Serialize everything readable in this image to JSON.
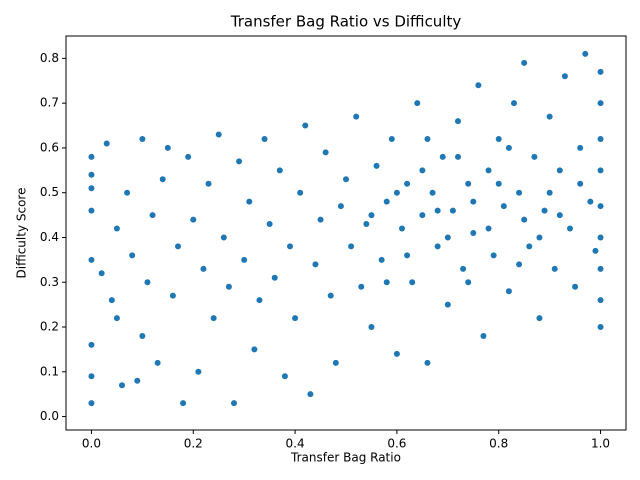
{
  "chart_data": {
    "type": "scatter",
    "title": "Transfer Bag Ratio vs Difficulty",
    "x_label": "Transfer Bag Ratio",
    "y_label": "Difficulty Score",
    "color": "#1f77b4",
    "xlim": [
      -0.05,
      1.05
    ],
    "ylim": [
      -0.03,
      0.85
    ],
    "xticks": [
      {
        "value": 0,
        "label": "0.0"
      },
      0.2,
      0.4,
      0.6,
      0.8,
      {
        "value": 1,
        "label": "1.0"
      }
    ],
    "yticks": [
      {
        "value": 0,
        "label": "0.0"
      },
      0.1,
      0.2,
      0.3,
      0.4,
      0.5,
      0.6,
      0.7,
      0.8
    ],
    "x": [
      0,
      0,
      0,
      0,
      0,
      0,
      0,
      0,
      0.02,
      0.03,
      0.04,
      0.05,
      0.05,
      0.06,
      0.07,
      0.08,
      0.09,
      0.1,
      0.1,
      0.11,
      0.12,
      0.13,
      0.14,
      0.15,
      0.16,
      0.17,
      0.18,
      0.19,
      0.2,
      0.21,
      0.22,
      0.23,
      0.24,
      0.25,
      0.26,
      0.27,
      0.28,
      0.29,
      0.3,
      0.31,
      0.32,
      0.33,
      0.34,
      0.35,
      0.36,
      0.37,
      0.38,
      0.39,
      0.4,
      0.41,
      0.42,
      0.43,
      0.44,
      0.45,
      0.46,
      0.47,
      0.48,
      0.49,
      0.5,
      0.51,
      0.52,
      0.53,
      0.54,
      0.55,
      0.56,
      0.57,
      0.58,
      0.59,
      0.6,
      0.61,
      0.62,
      0.63,
      0.64,
      0.65,
      0.66,
      0.67,
      0.68,
      0.69,
      0.7,
      0.71,
      0.72,
      0.73,
      0.74,
      0.75,
      0.76,
      0.77,
      0.78,
      0.79,
      0.8,
      0.81,
      0.82,
      0.83,
      0.84,
      0.85,
      0.86,
      0.87,
      0.88,
      0.89,
      0.9,
      0.91,
      0.92,
      0.93,
      0.94,
      0.95,
      0.96,
      0.97,
      0.98,
      0.99,
      1,
      1,
      1,
      1,
      1,
      1,
      1,
      1,
      1,
      0.55,
      0.6,
      0.65,
      0.7,
      0.75,
      0.8,
      0.85,
      0.9,
      0.62,
      0.68,
      0.72,
      0.78,
      0.82,
      0.88,
      0.58,
      0.66,
      0.74,
      0.84,
      0.92,
      0.96
    ],
    "y": [
      0.03,
      0.09,
      0.16,
      0.35,
      0.46,
      0.51,
      0.54,
      0.58,
      0.32,
      0.61,
      0.26,
      0.22,
      0.42,
      0.07,
      0.5,
      0.36,
      0.08,
      0.62,
      0.18,
      0.3,
      0.45,
      0.12,
      0.53,
      0.6,
      0.27,
      0.38,
      0.03,
      0.58,
      0.44,
      0.1,
      0.33,
      0.52,
      0.22,
      0.63,
      0.4,
      0.29,
      0.03,
      0.57,
      0.35,
      0.48,
      0.15,
      0.26,
      0.62,
      0.43,
      0.31,
      0.55,
      0.09,
      0.38,
      0.22,
      0.5,
      0.65,
      0.05,
      0.34,
      0.44,
      0.59,
      0.27,
      0.12,
      0.47,
      0.53,
      0.38,
      0.67,
      0.29,
      0.43,
      0.2,
      0.56,
      0.35,
      0.48,
      0.62,
      0.14,
      0.42,
      0.52,
      0.3,
      0.7,
      0.45,
      0.12,
      0.5,
      0.38,
      0.58,
      0.25,
      0.46,
      0.66,
      0.33,
      0.52,
      0.41,
      0.74,
      0.18,
      0.55,
      0.36,
      0.62,
      0.47,
      0.28,
      0.7,
      0.5,
      0.79,
      0.38,
      0.58,
      0.22,
      0.46,
      0.67,
      0.33,
      0.55,
      0.76,
      0.42,
      0.29,
      0.6,
      0.81,
      0.48,
      0.37,
      0.2,
      0.26,
      0.33,
      0.4,
      0.47,
      0.55,
      0.62,
      0.7,
      0.77,
      0.45,
      0.5,
      0.55,
      0.4,
      0.48,
      0.52,
      0.44,
      0.5,
      0.36,
      0.46,
      0.58,
      0.42,
      0.6,
      0.4,
      0.3,
      0.62,
      0.3,
      0.34,
      0.45,
      0.52
    ]
  }
}
